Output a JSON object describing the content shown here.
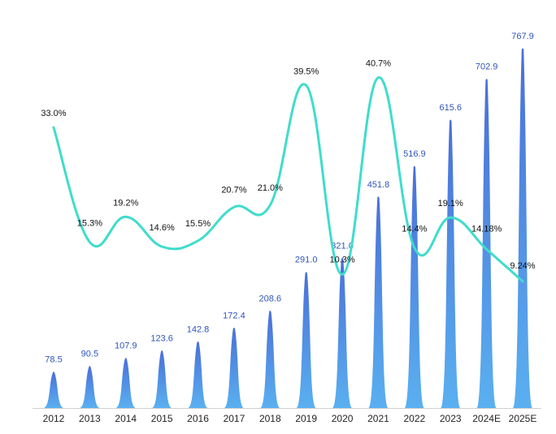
{
  "chart_data": {
    "type": "bar",
    "categories": [
      "2012",
      "2013",
      "2014",
      "2015",
      "2016",
      "2017",
      "2018",
      "2019",
      "2020",
      "2021",
      "2022",
      "2023",
      "2024E",
      "2025E"
    ],
    "series": [
      {
        "type": "bar",
        "values": [
          78.5,
          90.5,
          107.9,
          123.6,
          142.8,
          172.4,
          208.6,
          291.0,
          321.0,
          451.8,
          516.9,
          615.6,
          702.9,
          767.9
        ],
        "labels": [
          "78.5",
          "90.5",
          "107.9",
          "123.6",
          "142.8",
          "172.4",
          "208.6",
          "291.0",
          "321.0",
          "451.8",
          "516.9",
          "615.6",
          "702.9",
          "767.9"
        ]
      },
      {
        "type": "line",
        "values": [
          33.0,
          15.3,
          19.2,
          14.6,
          15.5,
          20.7,
          21.0,
          39.5,
          10.3,
          40.7,
          14.4,
          19.1,
          14.18,
          9.24
        ],
        "labels": [
          "33.0%",
          "15.3%",
          "19.2%",
          "14.6%",
          "15.5%",
          "20.7%",
          "21.0%",
          "39.5%",
          "10.3%",
          "40.7%",
          "14.4%",
          "19.1%",
          "14.18%",
          "9.24%"
        ]
      }
    ],
    "colors": {
      "bar_top": "#4a6fd8",
      "bar_bottom": "#5ab0f0",
      "bar_label": "#2f55b8",
      "line": "#40dccc",
      "axis": "#d0d0d0"
    },
    "grid": false,
    "legend": "none"
  }
}
